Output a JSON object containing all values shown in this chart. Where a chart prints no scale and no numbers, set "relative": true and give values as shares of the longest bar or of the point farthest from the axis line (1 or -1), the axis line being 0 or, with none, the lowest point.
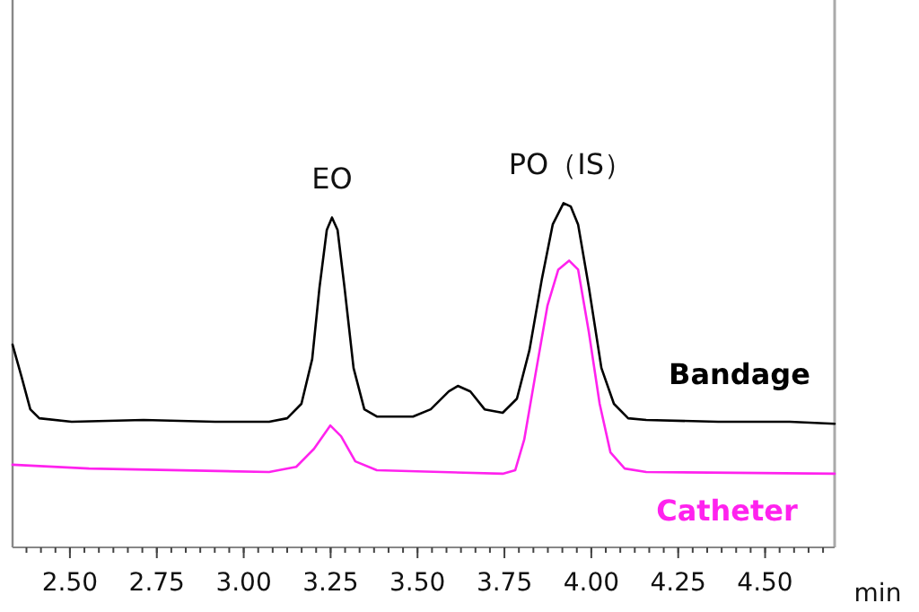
{
  "chart_data": {
    "type": "line",
    "relative": true,
    "xlabel": "min",
    "xlim": [
      2.335,
      4.7
    ],
    "xticks": [
      {
        "value": 2.5,
        "label": "2.50"
      },
      2.75,
      {
        "value": 3.0,
        "label": "3.00"
      },
      3.25,
      {
        "value": 3.5,
        "label": "3.50"
      },
      3.75,
      {
        "value": 4.0,
        "label": "4.00"
      },
      4.25,
      {
        "value": 4.5,
        "label": "4.50"
      }
    ],
    "series": [
      {
        "name": "Bandage",
        "color": "#000000",
        "x": [
          2.335,
          2.361,
          2.386,
          2.412,
          2.505,
          2.712,
          2.918,
          3.073,
          3.125,
          3.166,
          3.197,
          3.218,
          3.239,
          3.254,
          3.27,
          3.29,
          3.316,
          3.347,
          3.383,
          3.487,
          3.538,
          3.59,
          3.616,
          3.652,
          3.693,
          3.745,
          3.786,
          3.822,
          3.858,
          3.889,
          3.92,
          3.941,
          3.962,
          3.993,
          4.029,
          4.065,
          4.106,
          4.158,
          4.365,
          4.571,
          4.7
        ],
        "values": [
          0.589,
          0.495,
          0.401,
          0.375,
          0.365,
          0.37,
          0.365,
          0.365,
          0.375,
          0.417,
          0.547,
          0.755,
          0.922,
          0.958,
          0.922,
          0.755,
          0.521,
          0.401,
          0.38,
          0.38,
          0.401,
          0.453,
          0.469,
          0.453,
          0.401,
          0.391,
          0.432,
          0.573,
          0.781,
          0.938,
          1.0,
          0.99,
          0.938,
          0.755,
          0.521,
          0.417,
          0.375,
          0.37,
          0.365,
          0.365,
          0.359
        ]
      },
      {
        "name": "Catheter",
        "color": "#ff22ee",
        "x": [
          2.335,
          2.555,
          3.073,
          3.151,
          3.202,
          3.249,
          3.28,
          3.321,
          3.383,
          3.745,
          3.781,
          3.807,
          3.838,
          3.874,
          3.905,
          3.936,
          3.962,
          3.993,
          4.024,
          4.055,
          4.096,
          4.158,
          4.7
        ],
        "values": [
          0.24,
          0.229,
          0.219,
          0.234,
          0.286,
          0.354,
          0.323,
          0.25,
          0.224,
          0.214,
          0.224,
          0.313,
          0.495,
          0.703,
          0.807,
          0.833,
          0.807,
          0.625,
          0.417,
          0.276,
          0.229,
          0.219,
          0.214
        ]
      }
    ],
    "annotations": [
      "EO",
      "PO（IS）"
    ]
  }
}
